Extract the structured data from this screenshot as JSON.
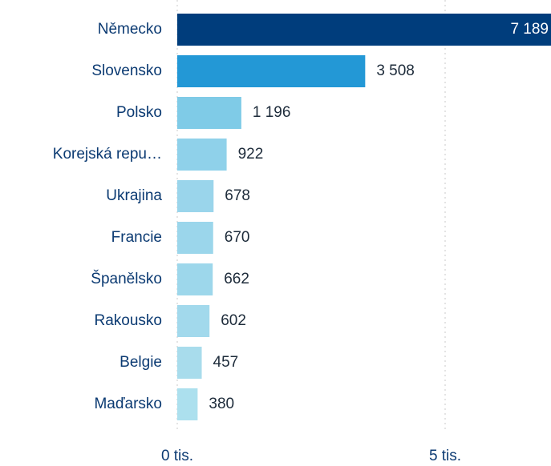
{
  "chart_data": {
    "type": "bar",
    "orientation": "horizontal",
    "categories": [
      "Německo",
      "Slovensko",
      "Polsko",
      "Korejská repu…",
      "Ukrajina",
      "Francie",
      "Španělsko",
      "Rakousko",
      "Belgie",
      "Maďarsko"
    ],
    "values": [
      7189,
      3508,
      1196,
      922,
      678,
      670,
      662,
      602,
      457,
      380
    ],
    "value_labels": [
      "7 189",
      "3 508",
      "1 196",
      "922",
      "678",
      "670",
      "662",
      "602",
      "457",
      "380"
    ],
    "colors": [
      "#003d7c",
      "#2398d6",
      "#7fcbe7",
      "#8fd1ea",
      "#9ad5eb",
      "#9bd6eb",
      "#9dd7eb",
      "#a2d9ec",
      "#a8dcec",
      "#ace0ee"
    ],
    "xlim": [
      0,
      7000
    ],
    "xticks": [
      {
        "value": 0,
        "label": "0 tis."
      },
      {
        "value": 5000,
        "label": "5 tis."
      }
    ],
    "grid": true
  }
}
